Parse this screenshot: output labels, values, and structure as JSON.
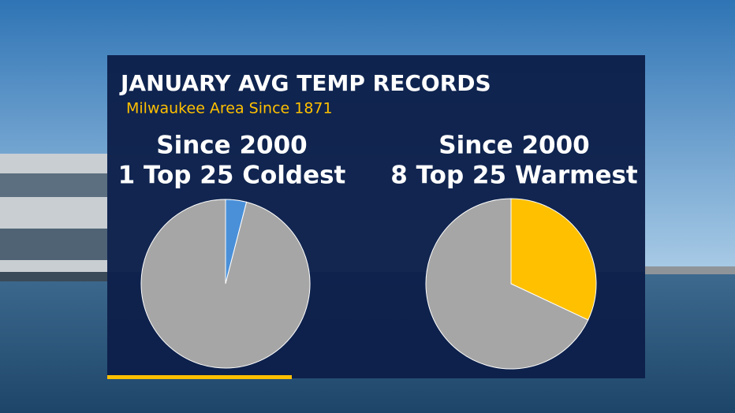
{
  "title": "JANUARY AVG TEMP RECORDS",
  "subtitle": "Milwaukee Area Since 1871",
  "chart_data": [
    {
      "type": "pie",
      "title": "Since 2000",
      "subtitle": "1 Top 25 Coldest",
      "values": [
        1,
        24
      ],
      "colors": [
        "#4a90d9",
        "#a6a6a6"
      ]
    },
    {
      "type": "pie",
      "title": "Since 2000",
      "subtitle": "8 Top 25 Warmest",
      "values": [
        8,
        17
      ],
      "colors": [
        "#ffc000",
        "#a6a6a6"
      ]
    }
  ]
}
